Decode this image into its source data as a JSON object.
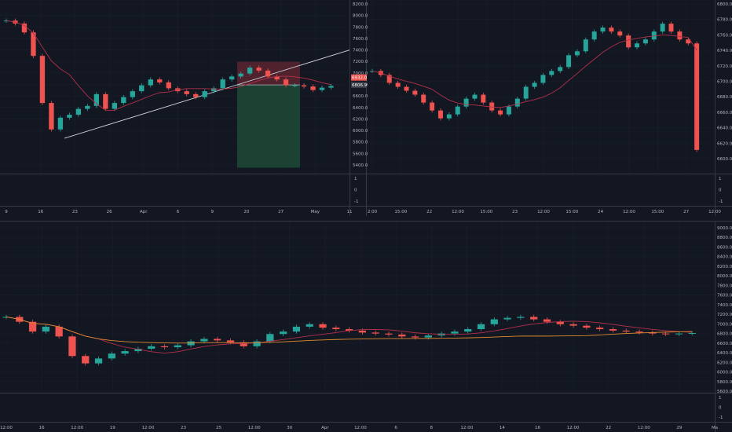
{
  "colors": {
    "background": "#131722",
    "border": "#363a45",
    "grid": "#1c2030",
    "axis_text": "#b2b5be",
    "up": "#26a69a",
    "down": "#ef5350",
    "ma_red": "#b2304a",
    "ma_orange": "#e08a2e",
    "trendline": "#d1d4dc",
    "position_loss": "#5a2530",
    "position_profit": "#1e4a36",
    "price_tag": "#ef5350"
  },
  "chart_data": [
    {
      "type": "line",
      "panel": "top-left",
      "y_axis_labels": [
        "8200.0",
        "8000.0",
        "7800.0",
        "7600.0",
        "7400.0",
        "7200.0",
        "7000.0",
        "6800.0",
        "6600.0",
        "6400.0",
        "6200.0",
        "6000.0",
        "5800.0",
        "5600.0",
        "5400.0"
      ],
      "x_axis_labels": [
        "9",
        "16",
        "23",
        "26",
        "Apr",
        "6",
        "9",
        "20",
        "27",
        "May",
        "11"
      ],
      "price_tags": [
        "6932.0",
        "6806.9"
      ],
      "indicator_axis": [
        "1",
        "0",
        "-1"
      ],
      "ylim": [
        5300,
        8250
      ],
      "closes": [
        7900,
        7850,
        7700,
        7300,
        6500,
        6050,
        6250,
        6300,
        6400,
        6450,
        6650,
        6400,
        6500,
        6600,
        6700,
        6800,
        6900,
        6850,
        6750,
        6700,
        6650,
        6600,
        6700,
        6750,
        6900,
        6950,
        7000,
        7100,
        7050,
        6950,
        6900,
        6800,
        6800,
        6780,
        6720,
        6760,
        6790
      ],
      "trendline": [
        [
          5900,
          7400
        ]
      ],
      "position": {
        "entry": 6806.9,
        "stop": 7200,
        "target": 5400
      }
    },
    {
      "type": "line",
      "panel": "top-right",
      "y_axis_labels": [
        "6800.0",
        "6780.0",
        "6760.0",
        "6740.0",
        "6720.0",
        "6700.0",
        "6680.0",
        "6660.0",
        "6640.0",
        "6620.0",
        "6600.0"
      ],
      "x_axis_labels": [
        "2:00",
        "15:00",
        "22",
        "12:00",
        "15:00",
        "23",
        "12:00",
        "15:00",
        "24",
        "12:00",
        "15:00",
        "27",
        "12:00"
      ],
      "indicator_axis": [
        "1",
        "0",
        "-1"
      ],
      "ylim": [
        6590,
        6810
      ],
      "closes": [
        6720,
        6715,
        6705,
        6700,
        6695,
        6690,
        6680,
        6670,
        6660,
        6665,
        6675,
        6685,
        6690,
        6680,
        6670,
        6665,
        6675,
        6685,
        6700,
        6705,
        6715,
        6720,
        6725,
        6740,
        6745,
        6760,
        6770,
        6775,
        6770,
        6765,
        6750,
        6755,
        6760,
        6770,
        6780,
        6770,
        6760,
        6755,
        6620
      ]
    },
    {
      "type": "line",
      "panel": "bottom",
      "y_axis_labels": [
        "9000.0",
        "8800.0",
        "8600.0",
        "8400.0",
        "8200.0",
        "8000.0",
        "7800.0",
        "7600.0",
        "7400.0",
        "7200.0",
        "7000.0",
        "6800.0",
        "6600.0",
        "6400.0",
        "6200.0",
        "6000.0",
        "5800.0",
        "5600.0"
      ],
      "x_axis_labels": [
        "12:00",
        "16",
        "12:00",
        "19",
        "12:00",
        "23",
        "25",
        "12:00",
        "30",
        "Apr",
        "12:00",
        "6",
        "8",
        "12:00",
        "14",
        "16",
        "12:00",
        "22",
        "12:00",
        "29",
        "Ma"
      ],
      "indicator_axis": [
        "1",
        "0",
        "-1"
      ],
      "ylim": [
        5550,
        9050
      ],
      "closes": [
        7100,
        7000,
        6800,
        6900,
        6700,
        6300,
        6150,
        6250,
        6350,
        6400,
        6450,
        6500,
        6480,
        6520,
        6600,
        6650,
        6620,
        6580,
        6500,
        6600,
        6750,
        6800,
        6900,
        6950,
        6880,
        6850,
        6820,
        6780,
        6760,
        6740,
        6700,
        6680,
        6720,
        6760,
        6800,
        6850,
        6950,
        7050,
        7080,
        7100,
        7050,
        7000,
        6950,
        6920,
        6880,
        6850,
        6820,
        6800,
        6780,
        6760,
        6750,
        6760,
        6770
      ]
    }
  ]
}
